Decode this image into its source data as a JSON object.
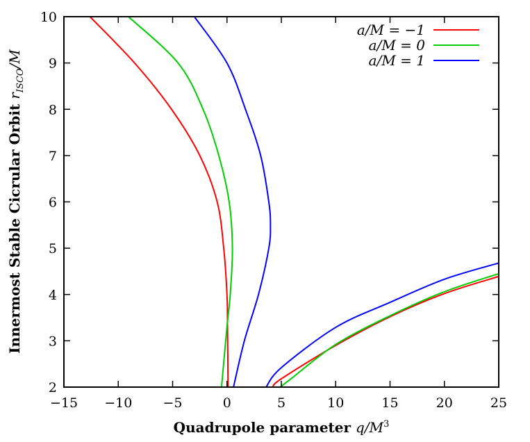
{
  "chart_data": {
    "type": "line",
    "xlabel": "Quadrupole parameter q/M³",
    "xlabel_parts": {
      "bold": "Quadrupole parameter ",
      "math": "q/M",
      "sup": "3"
    },
    "ylabel": "Innermost Stable Cicrular Orbit r_ISCO/M",
    "ylabel_parts": {
      "bold": "Innermost Stable Cicrular Orbit ",
      "math": "r",
      "sub": "ISCO",
      "tail": "/M"
    },
    "xlim": [
      -15,
      25
    ],
    "ylim": [
      2,
      10
    ],
    "xticks": [
      "−15",
      "−10",
      "−5",
      "0",
      "5",
      "10",
      "15",
      "20",
      "25"
    ],
    "xtick_values": [
      -15,
      -10,
      -5,
      0,
      5,
      10,
      15,
      20,
      25
    ],
    "yticks": [
      "2",
      "3",
      "4",
      "5",
      "6",
      "7",
      "8",
      "9",
      "10"
    ],
    "ytick_values": [
      2,
      3,
      4,
      5,
      6,
      7,
      8,
      9,
      10
    ],
    "grid": false,
    "legend_position": "top-right",
    "series": [
      {
        "name": "a/M = −1",
        "color": "#ff0000",
        "branches": [
          [
            [
              -12.6,
              10
            ],
            [
              -8.5,
              9
            ],
            [
              -5.1,
              8
            ],
            [
              -2.5,
              7
            ],
            [
              -0.9,
              6
            ],
            [
              -0.3,
              5
            ],
            [
              0.0,
              4
            ],
            [
              0.05,
              3.3
            ],
            [
              0.1,
              2
            ]
          ],
          [
            [
              4.2,
              2
            ],
            [
              5,
              2.18
            ],
            [
              10,
              2.9
            ],
            [
              15,
              3.52
            ],
            [
              20,
              4.02
            ],
            [
              25,
              4.39
            ]
          ]
        ]
      },
      {
        "name": "a/M = 0",
        "color": "#00cc00",
        "branches": [
          [
            [
              -9.06,
              10
            ],
            [
              -4.5,
              9
            ],
            [
              -2.2,
              8
            ],
            [
              -0.75,
              7
            ],
            [
              0.2,
              6
            ],
            [
              0.5,
              5
            ],
            [
              0.3,
              4
            ],
            [
              0.0,
              3.3
            ],
            [
              -0.5,
              2
            ]
          ],
          [
            [
              4.9,
              2
            ],
            [
              6,
              2.2
            ],
            [
              10,
              2.92
            ],
            [
              15,
              3.54
            ],
            [
              20,
              4.06
            ],
            [
              25,
              4.45
            ]
          ]
        ]
      },
      {
        "name": "a/M = 1",
        "color": "#0000ff",
        "branches": [
          [
            [
              -3.0,
              10
            ],
            [
              0.0,
              9
            ],
            [
              1.7,
              8
            ],
            [
              3.1,
              7
            ],
            [
              3.85,
              6
            ],
            [
              4.0,
              5.5
            ],
            [
              3.85,
              5
            ],
            [
              2.9,
              4
            ],
            [
              1.6,
              3
            ],
            [
              0.6,
              2
            ]
          ],
          [
            [
              3.6,
              2
            ],
            [
              5,
              2.42
            ],
            [
              10,
              3.29
            ],
            [
              15,
              3.83
            ],
            [
              20,
              4.33
            ],
            [
              25,
              4.68
            ]
          ]
        ]
      }
    ]
  }
}
